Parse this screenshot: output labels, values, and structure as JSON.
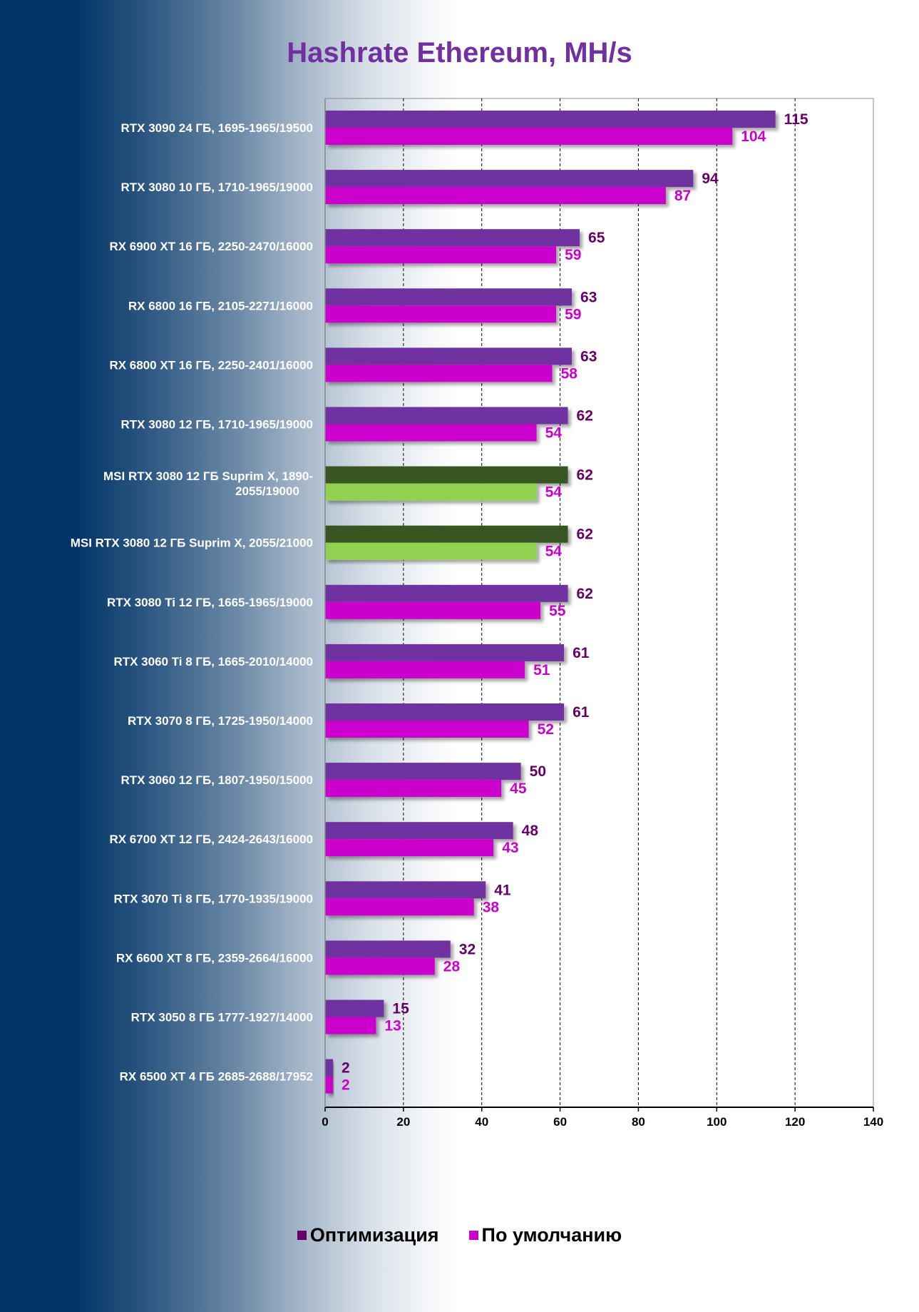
{
  "chart_data": {
    "type": "bar",
    "orientation": "horizontal",
    "title": "Hashrate Ethereum, MH/s",
    "xlabel": "",
    "ylabel": "",
    "xlim": [
      0,
      140
    ],
    "xticks": [
      0,
      20,
      40,
      60,
      80,
      100,
      120,
      140
    ],
    "grid": true,
    "legend_position": "bottom",
    "categories": [
      "RTX 3090 24 ГБ, 1695-1965/19500",
      "RTX 3080 10 ГБ, 1710-1965/19000",
      "RX 6900 XT 16 ГБ, 2250-2470/16000",
      "RX 6800 16 ГБ, 2105-2271/16000",
      "RX 6800 XT 16 ГБ, 2250-2401/16000",
      "RTX 3080 12 ГБ, 1710-1965/19000",
      "MSI RTX 3080 12 ГБ Suprim X, 1890-2055/19000",
      "MSI RTX 3080 12 ГБ Suprim X, 2055/21000",
      "RTX 3080 Ti 12 ГБ, 1665-1965/19000",
      "RTX 3060 Ti 8 ГБ, 1665-2010/14000",
      "RTX 3070 8 ГБ, 1725-1950/14000",
      "RTX 3060 12 ГБ, 1807-1950/15000",
      "RX 6700 XT 12 ГБ, 2424-2643/16000",
      "RTX 3070 Ti 8 ГБ, 1770-1935/19000",
      "RX 6600 XT 8 ГБ, 2359-2664/16000",
      "RTX 3050 8 ГБ 1777-1927/14000",
      "RX 6500 XT 4 ГБ 2685-2688/17952"
    ],
    "category_label_lines": [
      [
        "RTX 3090 24 ГБ, 1695-1965/19500"
      ],
      [
        "RTX 3080 10 ГБ, 1710-1965/19000"
      ],
      [
        "RX 6900 XT 16 ГБ, 2250-2470/16000"
      ],
      [
        "RX 6800 16 ГБ, 2105-2271/16000"
      ],
      [
        "RX 6800 XT 16 ГБ, 2250-2401/16000"
      ],
      [
        "RTX 3080 12 ГБ, 1710-1965/19000"
      ],
      [
        "MSI RTX 3080 12 ГБ Suprim X, 1890-",
        "2055/19000"
      ],
      [
        "MSI RTX 3080 12 ГБ Suprim X, 2055/21000"
      ],
      [
        "RTX 3080 Ti 12 ГБ, 1665-1965/19000"
      ],
      [
        "RTX 3060 Ti 8 ГБ, 1665-2010/14000"
      ],
      [
        "RTX 3070 8 ГБ, 1725-1950/14000"
      ],
      [
        "RTX 3060 12 ГБ, 1807-1950/15000"
      ],
      [
        "RX 6700 XT 12 ГБ, 2424-2643/16000"
      ],
      [
        "RTX 3070 Ti 8 ГБ, 1770-1935/19000"
      ],
      [
        "RX 6600 XT 8 ГБ, 2359-2664/16000"
      ],
      [
        "RTX 3050 8 ГБ 1777-1927/14000"
      ],
      [
        "RX 6500 XT 4 ГБ 2685-2688/17952"
      ]
    ],
    "highlighted_categories": [
      6,
      7
    ],
    "series": [
      {
        "name": "Оптимизация",
        "color": "#7030a0",
        "label_color": "#660066",
        "highlight_color": "#375623",
        "values": [
          115,
          94,
          65,
          63,
          63,
          62,
          62,
          62,
          62,
          61,
          61,
          50,
          48,
          41,
          32,
          15,
          2
        ]
      },
      {
        "name": "По умолчанию",
        "color": "#cc00cc",
        "label_color": "#cc00cc",
        "highlight_color": "#92d050",
        "values": [
          104,
          87,
          59,
          59,
          58,
          54,
          54,
          54,
          55,
          51,
          52,
          45,
          43,
          38,
          28,
          13,
          2
        ]
      }
    ]
  },
  "legend": {
    "items": [
      {
        "label": "Оптимизация",
        "color": "#660066"
      },
      {
        "label": "По умолчанию",
        "color": "#cc00cc"
      }
    ]
  }
}
